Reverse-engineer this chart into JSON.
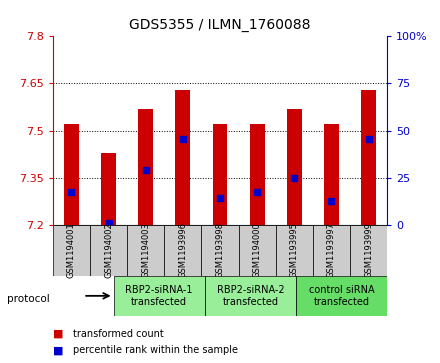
{
  "title": "GDS5355 / ILMN_1760088",
  "samples": [
    "GSM1194001",
    "GSM1194002",
    "GSM1194003",
    "GSM1193996",
    "GSM1193998",
    "GSM1194000",
    "GSM1193995",
    "GSM1193997",
    "GSM1193999"
  ],
  "bar_tops": [
    7.52,
    7.43,
    7.57,
    7.63,
    7.52,
    7.52,
    7.57,
    7.52,
    7.63
  ],
  "bar_bottoms": [
    7.2,
    7.2,
    7.2,
    7.2,
    7.2,
    7.2,
    7.2,
    7.2,
    7.2
  ],
  "blue_dots": [
    7.305,
    7.205,
    7.375,
    7.475,
    7.285,
    7.305,
    7.35,
    7.275,
    7.475
  ],
  "ylim_left": [
    7.2,
    7.8
  ],
  "ylim_right": [
    0,
    100
  ],
  "yticks_left": [
    7.2,
    7.35,
    7.5,
    7.65,
    7.8
  ],
  "yticks_right": [
    0,
    25,
    50,
    75,
    100
  ],
  "bar_color": "#cc0000",
  "dot_color": "#0000cc",
  "axis_color_left": "#cc0000",
  "axis_color_right": "#0000cc",
  "groups": [
    {
      "label": "RBP2-siRNA-1\ntransfected",
      "start": 0,
      "end": 3,
      "color": "#99ee99"
    },
    {
      "label": "RBP2-siRNA-2\ntransfected",
      "start": 3,
      "end": 6,
      "color": "#99ee99"
    },
    {
      "label": "control siRNA\ntransfected",
      "start": 6,
      "end": 9,
      "color": "#66dd66"
    }
  ],
  "protocol_label": "protocol",
  "legend_items": [
    {
      "label": "transformed count",
      "color": "#cc0000"
    },
    {
      "label": "percentile rank within the sample",
      "color": "#0000cc"
    }
  ],
  "sample_bg_color": "#cccccc",
  "plot_bg": "#ffffff",
  "bar_width": 0.4
}
